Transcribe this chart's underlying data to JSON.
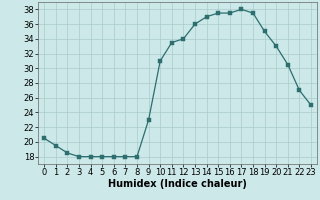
{
  "x": [
    0,
    1,
    2,
    3,
    4,
    5,
    6,
    7,
    8,
    9,
    10,
    11,
    12,
    13,
    14,
    15,
    16,
    17,
    18,
    19,
    20,
    21,
    22,
    23
  ],
  "y": [
    20.5,
    19.5,
    18.5,
    18.0,
    18.0,
    18.0,
    18.0,
    18.0,
    18.0,
    23.0,
    31.0,
    33.5,
    34.0,
    36.0,
    37.0,
    37.5,
    37.5,
    38.0,
    37.5,
    35.0,
    33.0,
    30.5,
    27.0,
    25.0
  ],
  "xlabel": "Humidex (Indice chaleur)",
  "line_color": "#2d6e6e",
  "marker_color": "#2d6e6e",
  "bg_color": "#cce8e8",
  "grid_color": "#aacccc",
  "ylim": [
    17,
    39
  ],
  "xlim": [
    -0.5,
    23.5
  ],
  "yticks": [
    18,
    20,
    22,
    24,
    26,
    28,
    30,
    32,
    34,
    36,
    38
  ],
  "xticks": [
    0,
    1,
    2,
    3,
    4,
    5,
    6,
    7,
    8,
    9,
    10,
    11,
    12,
    13,
    14,
    15,
    16,
    17,
    18,
    19,
    20,
    21,
    22,
    23
  ],
  "xlabel_fontsize": 7,
  "tick_fontsize": 6,
  "marker_size": 2.5,
  "linewidth": 0.9
}
